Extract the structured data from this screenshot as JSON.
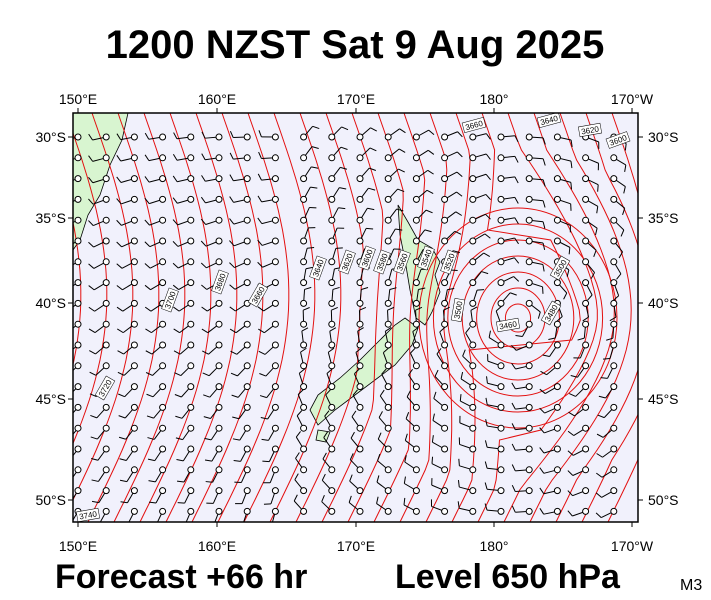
{
  "title": "1200 NZST Sat 9 Aug 2025",
  "footer": {
    "forecast": "Forecast +66 hr",
    "level": "Level 650 hPa",
    "code": "M3"
  },
  "axes": {
    "longitude": [
      "150°E",
      "160°E",
      "170°E",
      "180°",
      "170°W"
    ],
    "latitude": [
      "30°S",
      "35°S",
      "40°S",
      "45°S",
      "50°S"
    ]
  },
  "contour_labels": [
    "3660",
    "3640",
    "3620",
    "3600",
    "3700",
    "3680",
    "3660",
    "3640",
    "3620",
    "3600",
    "3580",
    "3560",
    "3540",
    "3520",
    "3500",
    "3460",
    "3480",
    "3500",
    "3720",
    "3740"
  ]
}
